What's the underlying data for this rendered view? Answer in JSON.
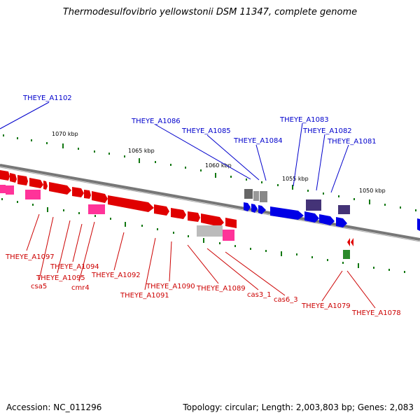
{
  "title": "Thermodesulfovibrio yellowstonii DSM 11347, complete genome",
  "footer": {
    "accession": "Accession: NC_011296",
    "summary": "Topology: circular; Length: 2,003,803 bp; Genes: 2,083"
  },
  "colors": {
    "forward_genes": "#e00000",
    "forward_rna": "#ff3399",
    "reverse_genes": "#0000e6",
    "reverse_rna": "#443377",
    "pseudo": "#888888",
    "backbone": "#777777",
    "ticks": "#117711",
    "label_forward": "#cc0000",
    "label_reverse": "#0000cc"
  },
  "scale_labels": [
    "1070 kbp",
    "1065 kbp",
    "1060 kbp",
    "1055 kbp",
    "1050 kbp"
  ],
  "labels_reverse": [
    "THEYE_A1102",
    "THEYE_A1086",
    "THEYE_A1085",
    "THEYE_A1084",
    "THEYE_A1083",
    "THEYE_A1082",
    "THEYE_A1081"
  ],
  "labels_forward": [
    "THEYE_A1097",
    "csa5",
    "THEYE_A1095",
    "THEYE_A1094",
    "cmr4",
    "THEYE_A1092",
    "THEYE_A1091",
    "THEYE_A1090",
    "THEYE_A1089",
    "cas3_1",
    "cas6_3",
    "THEYE_A1079",
    "THEYE_A1078"
  ]
}
